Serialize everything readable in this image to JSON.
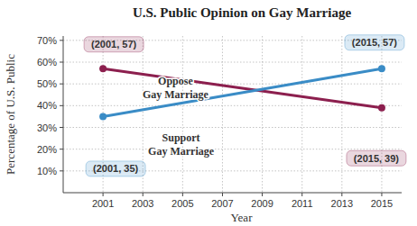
{
  "chart_data": {
    "type": "line",
    "title": "U.S. Public Opinion on Gay Marriage",
    "x_label": "Year",
    "y_label": "Percentage of U.S. Public",
    "x": [
      2001,
      2015
    ],
    "series": [
      {
        "name": "Oppose Gay Marriage",
        "color": "#8c1f4e",
        "values": [
          57,
          39
        ],
        "marker": "circle",
        "line_style": "solid"
      },
      {
        "name": "Support Gay Marriage",
        "color": "#3a8cc6",
        "values": [
          35,
          57
        ],
        "marker": "circle",
        "line_style": "solid"
      }
    ],
    "xlim": [
      1999,
      2016
    ],
    "xticks": [
      2001,
      2003,
      2005,
      2007,
      2009,
      2011,
      2013,
      2015
    ],
    "ylim": [
      0,
      72
    ],
    "yticks": [
      {
        "value": 10,
        "label": "10%"
      },
      {
        "value": 20,
        "label": "20%"
      },
      {
        "value": 30,
        "label": "30%"
      },
      {
        "value": 40,
        "label": "40%"
      },
      {
        "value": 50,
        "label": "50%"
      },
      {
        "value": 60,
        "label": "60%"
      },
      {
        "value": 70,
        "label": "70%"
      }
    ],
    "grid": true,
    "annotations": [
      {
        "text": "(2001, 57)",
        "x": 2001,
        "y": 57
      },
      {
        "text": "(2015, 57)",
        "x": 2015,
        "y": 57
      },
      {
        "text": "(2001, 35)",
        "x": 2001,
        "y": 35
      },
      {
        "text": "(2015, 39)",
        "x": 2015,
        "y": 39
      }
    ]
  }
}
